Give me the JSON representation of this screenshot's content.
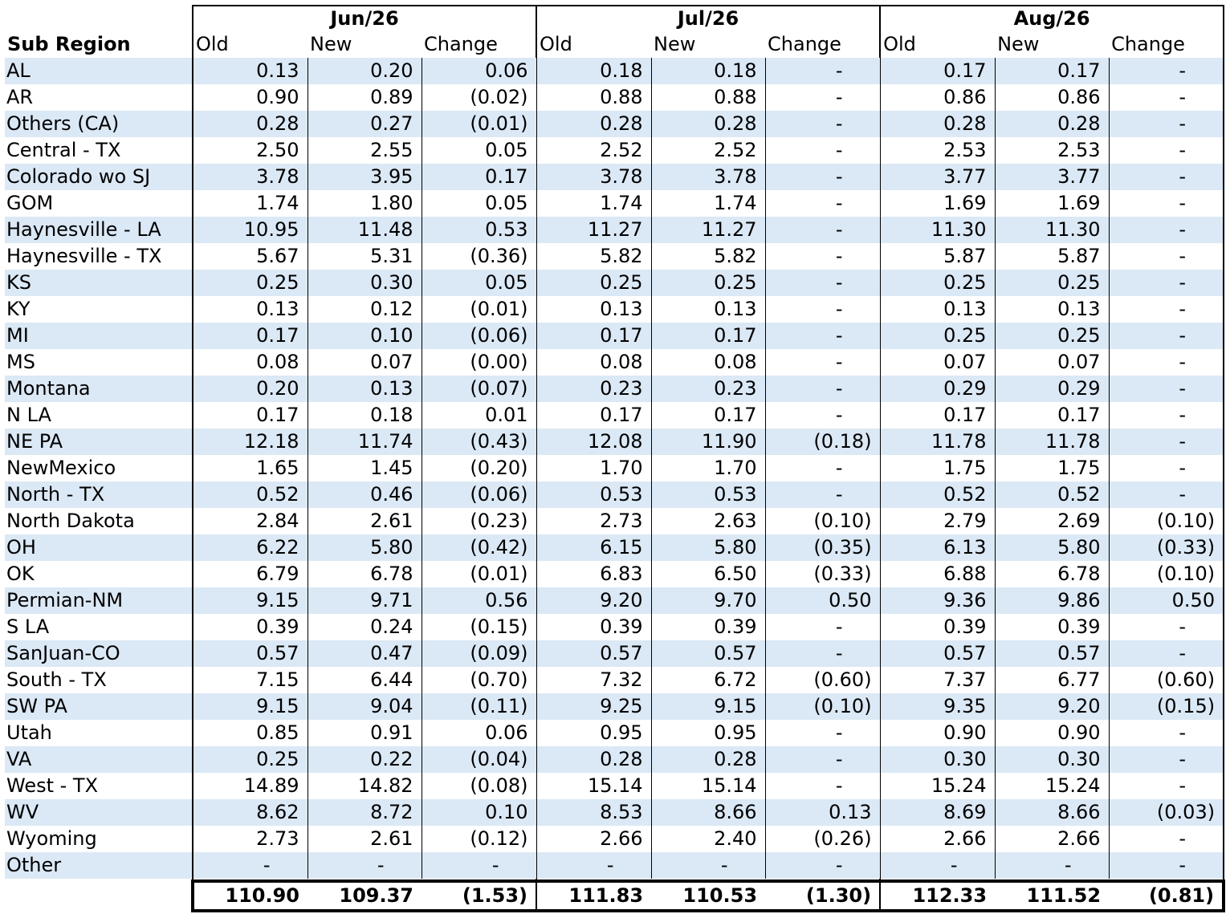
{
  "header": {
    "sub_region_label": "Sub Region",
    "months": [
      "Jun/26",
      "Jul/26",
      "Aug/26"
    ],
    "columns": [
      "Old",
      "New",
      "Change"
    ]
  },
  "rows": [
    {
      "region": "AL",
      "values": [
        "0.13",
        "0.20",
        "0.06",
        "0.18",
        "0.18",
        "-",
        "0.17",
        "0.17",
        "-"
      ]
    },
    {
      "region": "AR",
      "values": [
        "0.90",
        "0.89",
        "(0.02)",
        "0.88",
        "0.88",
        "-",
        "0.86",
        "0.86",
        "-"
      ]
    },
    {
      "region": "Others (CA)",
      "values": [
        "0.28",
        "0.27",
        "(0.01)",
        "0.28",
        "0.28",
        "-",
        "0.28",
        "0.28",
        "-"
      ]
    },
    {
      "region": "Central - TX",
      "values": [
        "2.50",
        "2.55",
        "0.05",
        "2.52",
        "2.52",
        "-",
        "2.53",
        "2.53",
        "-"
      ]
    },
    {
      "region": "Colorado wo SJ",
      "values": [
        "3.78",
        "3.95",
        "0.17",
        "3.78",
        "3.78",
        "-",
        "3.77",
        "3.77",
        "-"
      ]
    },
    {
      "region": "GOM",
      "values": [
        "1.74",
        "1.80",
        "0.05",
        "1.74",
        "1.74",
        "-",
        "1.69",
        "1.69",
        "-"
      ]
    },
    {
      "region": "Haynesville - LA",
      "values": [
        "10.95",
        "11.48",
        "0.53",
        "11.27",
        "11.27",
        "-",
        "11.30",
        "11.30",
        "-"
      ]
    },
    {
      "region": "Haynesville - TX",
      "values": [
        "5.67",
        "5.31",
        "(0.36)",
        "5.82",
        "5.82",
        "-",
        "5.87",
        "5.87",
        "-"
      ]
    },
    {
      "region": "KS",
      "values": [
        "0.25",
        "0.30",
        "0.05",
        "0.25",
        "0.25",
        "-",
        "0.25",
        "0.25",
        "-"
      ]
    },
    {
      "region": "KY",
      "values": [
        "0.13",
        "0.12",
        "(0.01)",
        "0.13",
        "0.13",
        "-",
        "0.13",
        "0.13",
        "-"
      ]
    },
    {
      "region": "MI",
      "values": [
        "0.17",
        "0.10",
        "(0.06)",
        "0.17",
        "0.17",
        "-",
        "0.25",
        "0.25",
        "-"
      ]
    },
    {
      "region": "MS",
      "values": [
        "0.08",
        "0.07",
        "(0.00)",
        "0.08",
        "0.08",
        "-",
        "0.07",
        "0.07",
        "-"
      ]
    },
    {
      "region": "Montana",
      "values": [
        "0.20",
        "0.13",
        "(0.07)",
        "0.23",
        "0.23",
        "-",
        "0.29",
        "0.29",
        "-"
      ]
    },
    {
      "region": "N LA",
      "values": [
        "0.17",
        "0.18",
        "0.01",
        "0.17",
        "0.17",
        "-",
        "0.17",
        "0.17",
        "-"
      ]
    },
    {
      "region": "NE PA",
      "values": [
        "12.18",
        "11.74",
        "(0.43)",
        "12.08",
        "11.90",
        "(0.18)",
        "11.78",
        "11.78",
        "-"
      ]
    },
    {
      "region": "NewMexico",
      "values": [
        "1.65",
        "1.45",
        "(0.20)",
        "1.70",
        "1.70",
        "-",
        "1.75",
        "1.75",
        "-"
      ]
    },
    {
      "region": "North - TX",
      "values": [
        "0.52",
        "0.46",
        "(0.06)",
        "0.53",
        "0.53",
        "-",
        "0.52",
        "0.52",
        "-"
      ]
    },
    {
      "region": "North Dakota",
      "values": [
        "2.84",
        "2.61",
        "(0.23)",
        "2.73",
        "2.63",
        "(0.10)",
        "2.79",
        "2.69",
        "(0.10)"
      ]
    },
    {
      "region": "OH",
      "values": [
        "6.22",
        "5.80",
        "(0.42)",
        "6.15",
        "5.80",
        "(0.35)",
        "6.13",
        "5.80",
        "(0.33)"
      ]
    },
    {
      "region": "OK",
      "values": [
        "6.79",
        "6.78",
        "(0.01)",
        "6.83",
        "6.50",
        "(0.33)",
        "6.88",
        "6.78",
        "(0.10)"
      ]
    },
    {
      "region": "Permian-NM",
      "values": [
        "9.15",
        "9.71",
        "0.56",
        "9.20",
        "9.70",
        "0.50",
        "9.36",
        "9.86",
        "0.50"
      ]
    },
    {
      "region": "S LA",
      "values": [
        "0.39",
        "0.24",
        "(0.15)",
        "0.39",
        "0.39",
        "-",
        "0.39",
        "0.39",
        "-"
      ]
    },
    {
      "region": "SanJuan-CO",
      "values": [
        "0.57",
        "0.47",
        "(0.09)",
        "0.57",
        "0.57",
        "-",
        "0.57",
        "0.57",
        "-"
      ]
    },
    {
      "region": "South - TX",
      "values": [
        "7.15",
        "6.44",
        "(0.70)",
        "7.32",
        "6.72",
        "(0.60)",
        "7.37",
        "6.77",
        "(0.60)"
      ]
    },
    {
      "region": "SW PA",
      "values": [
        "9.15",
        "9.04",
        "(0.11)",
        "9.25",
        "9.15",
        "(0.10)",
        "9.35",
        "9.20",
        "(0.15)"
      ]
    },
    {
      "region": "Utah",
      "values": [
        "0.85",
        "0.91",
        "0.06",
        "0.95",
        "0.95",
        "-",
        "0.90",
        "0.90",
        "-"
      ]
    },
    {
      "region": "VA",
      "values": [
        "0.25",
        "0.22",
        "(0.04)",
        "0.28",
        "0.28",
        "-",
        "0.30",
        "0.30",
        "-"
      ]
    },
    {
      "region": "West - TX",
      "values": [
        "14.89",
        "14.82",
        "(0.08)",
        "15.14",
        "15.14",
        "-",
        "15.24",
        "15.24",
        "-"
      ]
    },
    {
      "region": "WV",
      "values": [
        "8.62",
        "8.72",
        "0.10",
        "8.53",
        "8.66",
        "0.13",
        "8.69",
        "8.66",
        "(0.03)"
      ]
    },
    {
      "region": "Wyoming",
      "values": [
        "2.73",
        "2.61",
        "(0.12)",
        "2.66",
        "2.40",
        "(0.26)",
        "2.66",
        "2.66",
        "-"
      ]
    },
    {
      "region": "Other",
      "values": [
        "-",
        "-",
        "-",
        "-",
        "-",
        "-",
        "-",
        "-",
        "-"
      ]
    }
  ],
  "totals": [
    "110.90",
    "109.37",
    "(1.53)",
    "111.83",
    "110.53",
    "(1.30)",
    "112.33",
    "111.52",
    "(0.81)"
  ]
}
